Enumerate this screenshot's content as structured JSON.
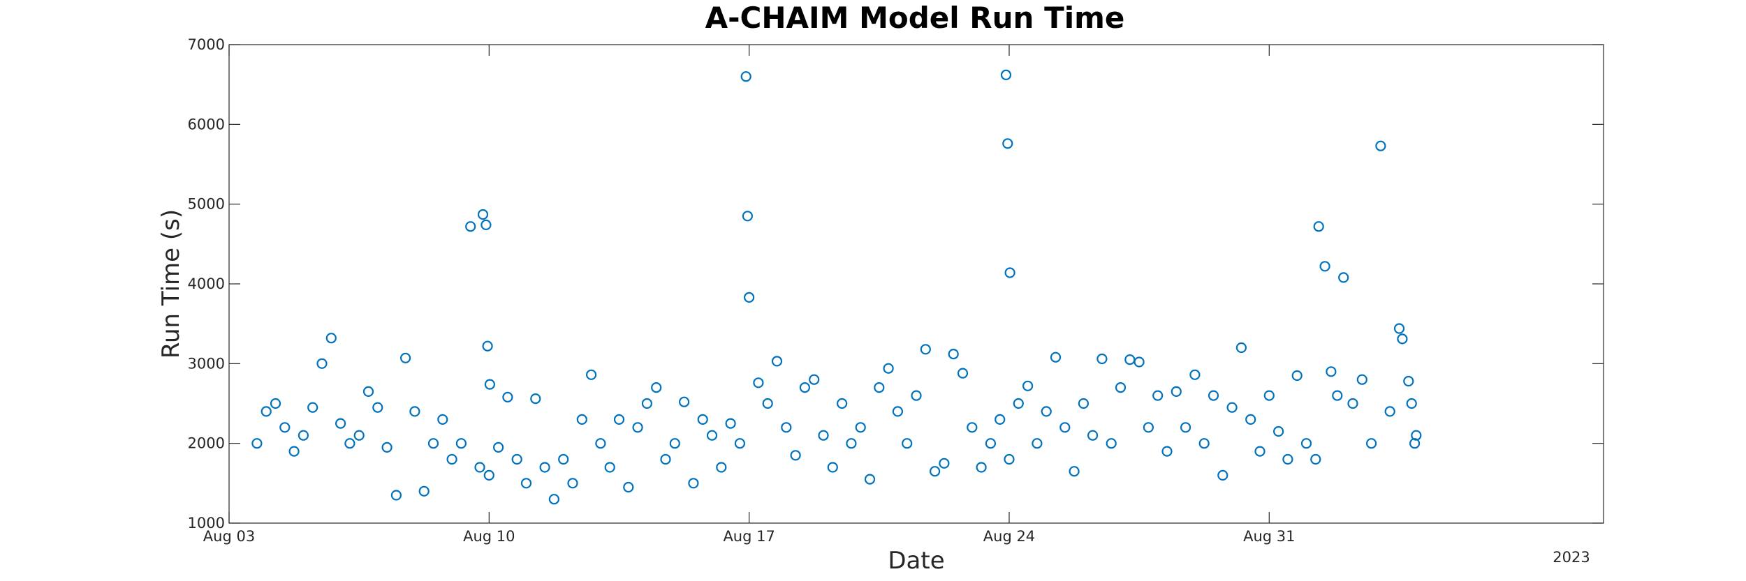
{
  "chart_data": {
    "type": "scatter",
    "title": "A-CHAIM Model Run Time",
    "xlabel": "Date",
    "ylabel": "Run Time (s)",
    "year_label": "2023",
    "xlim": [
      "2023-08-03",
      "2023-09-09"
    ],
    "ylim": [
      1000,
      7000
    ],
    "x_ticks": [
      {
        "date": "2023-08-03",
        "label": "Aug 03"
      },
      {
        "date": "2023-08-10",
        "label": "Aug 10"
      },
      {
        "date": "2023-08-17",
        "label": "Aug 17"
      },
      {
        "date": "2023-08-24",
        "label": "Aug 24"
      },
      {
        "date": "2023-08-31",
        "label": "Aug 31"
      }
    ],
    "y_ticks": [
      1000,
      2000,
      3000,
      4000,
      5000,
      6000,
      7000
    ],
    "grid": false,
    "marker": "open-circle",
    "color": "#0072BD",
    "points": [
      [
        "2023-08-03T18:00",
        2000
      ],
      [
        "2023-08-04T00:00",
        2400
      ],
      [
        "2023-08-04T06:00",
        2500
      ],
      [
        "2023-08-04T12:00",
        2200
      ],
      [
        "2023-08-04T18:00",
        1900
      ],
      [
        "2023-08-05T00:00",
        2100
      ],
      [
        "2023-08-05T06:00",
        2450
      ],
      [
        "2023-08-05T12:00",
        3000
      ],
      [
        "2023-08-05T18:00",
        3320
      ],
      [
        "2023-08-06T00:00",
        2250
      ],
      [
        "2023-08-06T06:00",
        2000
      ],
      [
        "2023-08-06T12:00",
        2100
      ],
      [
        "2023-08-06T18:00",
        2650
      ],
      [
        "2023-08-07T00:00",
        2450
      ],
      [
        "2023-08-07T06:00",
        1950
      ],
      [
        "2023-08-07T12:00",
        1350
      ],
      [
        "2023-08-07T18:00",
        3070
      ],
      [
        "2023-08-08T00:00",
        2400
      ],
      [
        "2023-08-08T06:00",
        1400
      ],
      [
        "2023-08-08T12:00",
        2000
      ],
      [
        "2023-08-08T18:00",
        2300
      ],
      [
        "2023-08-09T00:00",
        1800
      ],
      [
        "2023-08-09T06:00",
        2000
      ],
      [
        "2023-08-09T12:00",
        4720
      ],
      [
        "2023-08-09T18:00",
        1700
      ],
      [
        "2023-08-10T00:00",
        1600
      ],
      [
        "2023-08-10T06:00",
        1950
      ],
      [
        "2023-08-09T20:00",
        4870
      ],
      [
        "2023-08-09T22:00",
        4740
      ],
      [
        "2023-08-09T23:00",
        3220
      ],
      [
        "2023-08-10T00:30",
        2740
      ],
      [
        "2023-08-10T12:00",
        2580
      ],
      [
        "2023-08-10T18:00",
        1800
      ],
      [
        "2023-08-11T00:00",
        1500
      ],
      [
        "2023-08-11T06:00",
        2560
      ],
      [
        "2023-08-11T12:00",
        1700
      ],
      [
        "2023-08-11T18:00",
        1300
      ],
      [
        "2023-08-12T00:00",
        1800
      ],
      [
        "2023-08-12T06:00",
        1500
      ],
      [
        "2023-08-12T12:00",
        2300
      ],
      [
        "2023-08-12T18:00",
        2860
      ],
      [
        "2023-08-13T00:00",
        2000
      ],
      [
        "2023-08-13T06:00",
        1700
      ],
      [
        "2023-08-13T12:00",
        2300
      ],
      [
        "2023-08-13T18:00",
        1450
      ],
      [
        "2023-08-14T00:00",
        2200
      ],
      [
        "2023-08-14T06:00",
        2500
      ],
      [
        "2023-08-14T12:00",
        2700
      ],
      [
        "2023-08-14T18:00",
        1800
      ],
      [
        "2023-08-15T00:00",
        2000
      ],
      [
        "2023-08-15T06:00",
        2520
      ],
      [
        "2023-08-15T12:00",
        1500
      ],
      [
        "2023-08-15T18:00",
        2300
      ],
      [
        "2023-08-16T00:00",
        2100
      ],
      [
        "2023-08-16T06:00",
        1700
      ],
      [
        "2023-08-16T12:00",
        2250
      ],
      [
        "2023-08-16T18:00",
        2000
      ],
      [
        "2023-08-16T22:00",
        6600
      ],
      [
        "2023-08-16T23:00",
        4850
      ],
      [
        "2023-08-17T00:00",
        3830
      ],
      [
        "2023-08-17T06:00",
        2760
      ],
      [
        "2023-08-17T12:00",
        2500
      ],
      [
        "2023-08-17T18:00",
        3030
      ],
      [
        "2023-08-18T00:00",
        2200
      ],
      [
        "2023-08-18T06:00",
        1850
      ],
      [
        "2023-08-18T12:00",
        2700
      ],
      [
        "2023-08-18T18:00",
        2800
      ],
      [
        "2023-08-19T00:00",
        2100
      ],
      [
        "2023-08-19T06:00",
        1700
      ],
      [
        "2023-08-19T12:00",
        2500
      ],
      [
        "2023-08-19T18:00",
        2000
      ],
      [
        "2023-08-20T00:00",
        2200
      ],
      [
        "2023-08-20T06:00",
        1550
      ],
      [
        "2023-08-20T12:00",
        2700
      ],
      [
        "2023-08-20T18:00",
        2940
      ],
      [
        "2023-08-21T00:00",
        2400
      ],
      [
        "2023-08-21T06:00",
        2000
      ],
      [
        "2023-08-21T12:00",
        2600
      ],
      [
        "2023-08-21T18:00",
        3180
      ],
      [
        "2023-08-22T00:00",
        1650
      ],
      [
        "2023-08-22T06:00",
        1750
      ],
      [
        "2023-08-22T12:00",
        3120
      ],
      [
        "2023-08-22T18:00",
        2880
      ],
      [
        "2023-08-23T00:00",
        2200
      ],
      [
        "2023-08-23T06:00",
        1700
      ],
      [
        "2023-08-23T12:00",
        2000
      ],
      [
        "2023-08-23T18:00",
        2300
      ],
      [
        "2023-08-24T00:00",
        1800
      ],
      [
        "2023-08-23T22:00",
        6620
      ],
      [
        "2023-08-23T23:00",
        5760
      ],
      [
        "2023-08-24T00:30",
        4140
      ],
      [
        "2023-08-24T06:00",
        2500
      ],
      [
        "2023-08-24T12:00",
        2720
      ],
      [
        "2023-08-24T18:00",
        2000
      ],
      [
        "2023-08-25T00:00",
        2400
      ],
      [
        "2023-08-25T06:00",
        3080
      ],
      [
        "2023-08-25T12:00",
        2200
      ],
      [
        "2023-08-25T18:00",
        1650
      ],
      [
        "2023-08-26T00:00",
        2500
      ],
      [
        "2023-08-26T06:00",
        2100
      ],
      [
        "2023-08-26T12:00",
        3060
      ],
      [
        "2023-08-26T18:00",
        2000
      ],
      [
        "2023-08-27T00:00",
        2700
      ],
      [
        "2023-08-27T06:00",
        3050
      ],
      [
        "2023-08-27T12:00",
        3020
      ],
      [
        "2023-08-27T18:00",
        2200
      ],
      [
        "2023-08-28T00:00",
        2600
      ],
      [
        "2023-08-28T06:00",
        1900
      ],
      [
        "2023-08-28T12:00",
        2650
      ],
      [
        "2023-08-28T18:00",
        2200
      ],
      [
        "2023-08-29T00:00",
        2860
      ],
      [
        "2023-08-29T06:00",
        2000
      ],
      [
        "2023-08-29T12:00",
        2600
      ],
      [
        "2023-08-29T18:00",
        1600
      ],
      [
        "2023-08-30T00:00",
        2450
      ],
      [
        "2023-08-30T06:00",
        3200
      ],
      [
        "2023-08-30T12:00",
        2300
      ],
      [
        "2023-08-30T18:00",
        1900
      ],
      [
        "2023-08-31T00:00",
        2600
      ],
      [
        "2023-08-31T06:00",
        2150
      ],
      [
        "2023-08-31T12:00",
        1800
      ],
      [
        "2023-08-31T18:00",
        2850
      ],
      [
        "2023-09-01T00:00",
        2000
      ],
      [
        "2023-09-01T06:00",
        1800
      ],
      [
        "2023-09-01T08:00",
        4720
      ],
      [
        "2023-09-01T12:00",
        4220
      ],
      [
        "2023-09-01T16:00",
        2900
      ],
      [
        "2023-09-01T20:00",
        2600
      ],
      [
        "2023-09-02T00:00",
        4080
      ],
      [
        "2023-09-02T06:00",
        2500
      ],
      [
        "2023-09-02T12:00",
        2800
      ],
      [
        "2023-09-02T18:00",
        2000
      ],
      [
        "2023-09-03T00:00",
        5730
      ],
      [
        "2023-09-03T06:00",
        2400
      ],
      [
        "2023-09-03T12:00",
        3440
      ],
      [
        "2023-09-03T14:00",
        3310
      ],
      [
        "2023-09-03T18:00",
        2780
      ],
      [
        "2023-09-03T20:00",
        2500
      ],
      [
        "2023-09-03T22:00",
        2000
      ],
      [
        "2023-09-03T23:00",
        2100
      ]
    ]
  }
}
